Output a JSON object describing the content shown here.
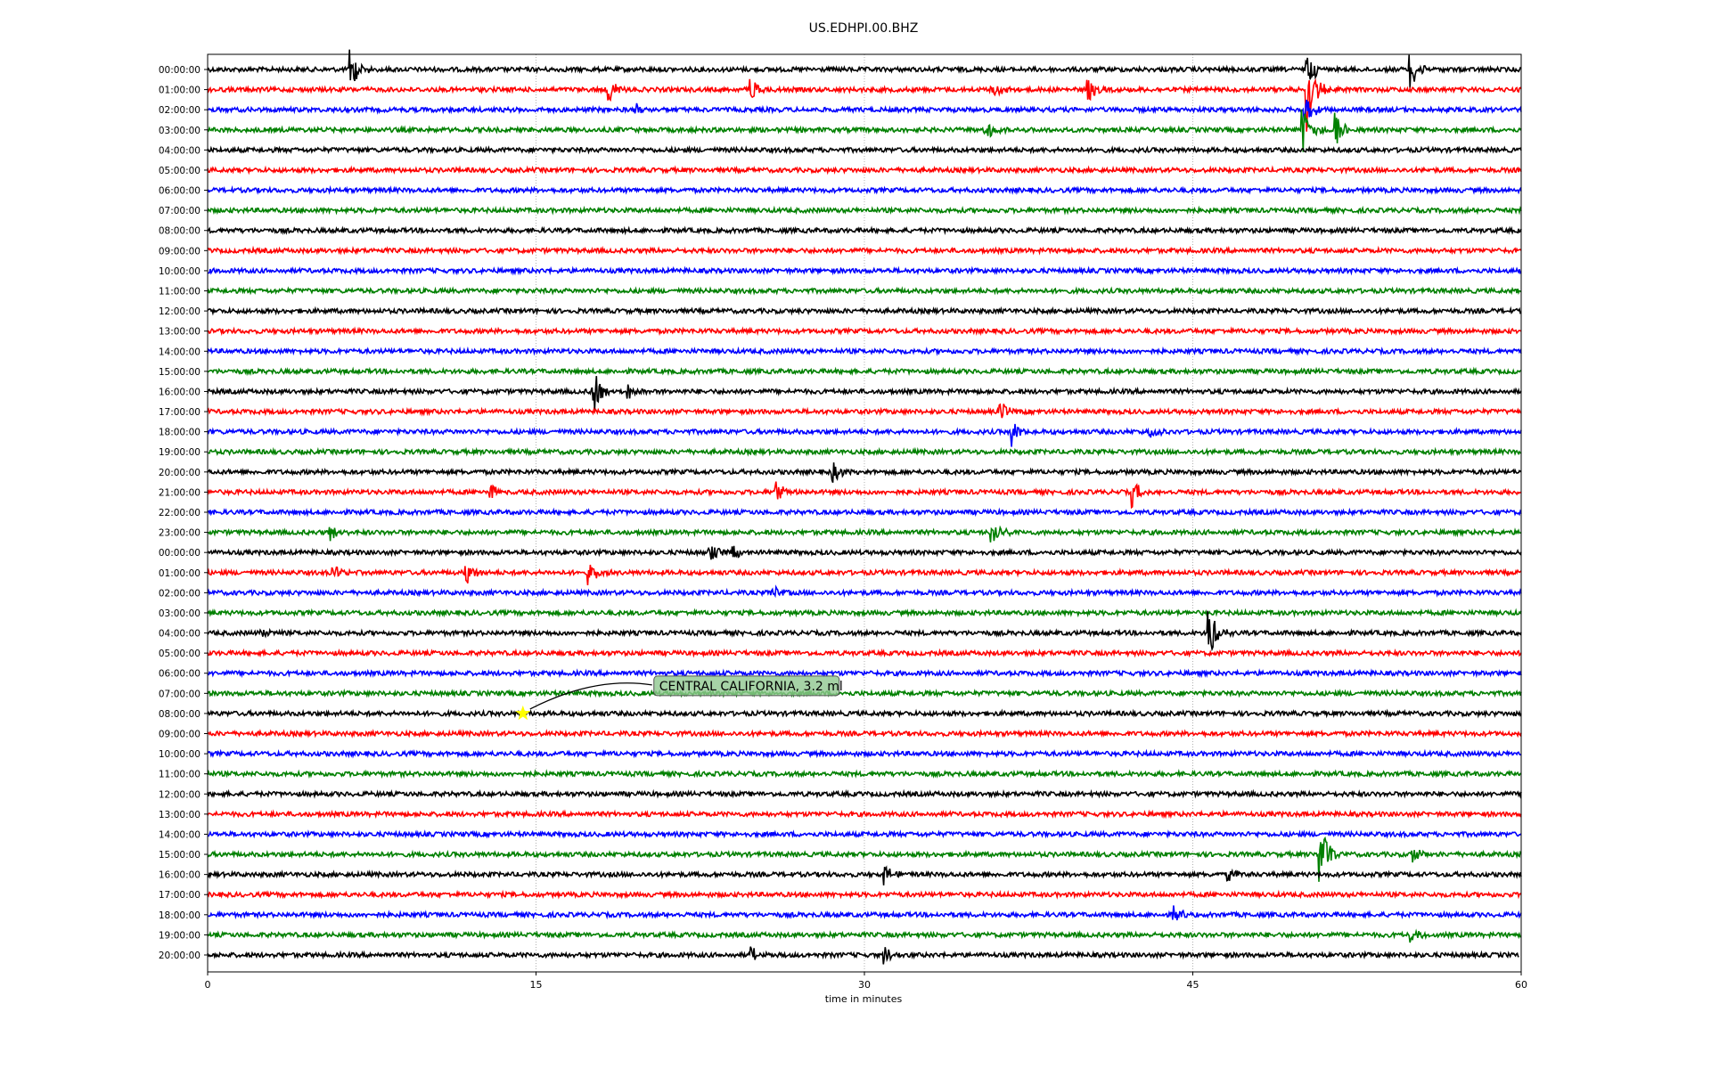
{
  "chart_data": {
    "type": "line",
    "title": "US.EDHPI.00.BHZ",
    "xlabel": "time in minutes",
    "ylabel": "",
    "xlim": [
      0,
      60
    ],
    "xticks": [
      0,
      15,
      30,
      45,
      60
    ],
    "grid": "vertical dotted at x ticks",
    "trace_labels": [
      "00:00:00",
      "01:00:00",
      "02:00:00",
      "03:00:00",
      "04:00:00",
      "05:00:00",
      "06:00:00",
      "07:00:00",
      "08:00:00",
      "09:00:00",
      "10:00:00",
      "11:00:00",
      "12:00:00",
      "13:00:00",
      "14:00:00",
      "15:00:00",
      "16:00:00",
      "17:00:00",
      "18:00:00",
      "19:00:00",
      "20:00:00",
      "21:00:00",
      "22:00:00",
      "23:00:00",
      "00:00:00",
      "01:00:00",
      "02:00:00",
      "03:00:00",
      "04:00:00",
      "05:00:00",
      "06:00:00",
      "07:00:00",
      "08:00:00",
      "09:00:00",
      "10:00:00",
      "11:00:00",
      "12:00:00",
      "13:00:00",
      "14:00:00",
      "15:00:00",
      "16:00:00",
      "17:00:00",
      "18:00:00",
      "19:00:00",
      "20:00:00"
    ],
    "color_cycle": [
      "#000000",
      "#ff0000",
      "#0000ff",
      "#008000"
    ],
    "last_trace_end_minute": 59.9,
    "events": [
      {
        "trace": 0,
        "minute": 6.5,
        "amp": 1.2
      },
      {
        "trace": 0,
        "minute": 50.2,
        "amp": 1.0
      },
      {
        "trace": 0,
        "minute": 54.9,
        "amp": 1.0
      },
      {
        "trace": 1,
        "minute": 18.3,
        "amp": 0.7
      },
      {
        "trace": 1,
        "minute": 24.8,
        "amp": 0.7
      },
      {
        "trace": 1,
        "minute": 50.2,
        "amp": 2.2
      },
      {
        "trace": 1,
        "minute": 40.2,
        "amp": 0.6
      },
      {
        "trace": 1,
        "minute": 35.8,
        "amp": 0.5
      },
      {
        "trace": 2,
        "minute": 19.5,
        "amp": 0.4
      },
      {
        "trace": 2,
        "minute": 50.1,
        "amp": 0.9
      },
      {
        "trace": 3,
        "minute": 35.5,
        "amp": 0.6
      },
      {
        "trace": 3,
        "minute": 50.0,
        "amp": 1.3
      },
      {
        "trace": 3,
        "minute": 51.5,
        "amp": 1.0
      },
      {
        "trace": 16,
        "minute": 17.6,
        "amp": 1.3
      },
      {
        "trace": 16,
        "minute": 19.2,
        "amp": 0.4
      },
      {
        "trace": 17,
        "minute": 36.2,
        "amp": 0.5
      },
      {
        "trace": 18,
        "minute": 36.7,
        "amp": 0.8
      },
      {
        "trace": 18,
        "minute": 43.0,
        "amp": 0.5
      },
      {
        "trace": 20,
        "minute": 28.5,
        "amp": 0.6
      },
      {
        "trace": 21,
        "minute": 25.9,
        "amp": 0.7
      },
      {
        "trace": 21,
        "minute": 42.2,
        "amp": 0.8
      },
      {
        "trace": 21,
        "minute": 12.9,
        "amp": 0.5
      },
      {
        "trace": 23,
        "minute": 35.8,
        "amp": 0.8
      },
      {
        "trace": 23,
        "minute": 5.6,
        "amp": 0.5
      },
      {
        "trace": 24,
        "minute": 22.9,
        "amp": 0.5
      },
      {
        "trace": 24,
        "minute": 24.0,
        "amp": 0.4
      },
      {
        "trace": 25,
        "minute": 5.7,
        "amp": 0.5
      },
      {
        "trace": 25,
        "minute": 11.8,
        "amp": 0.6
      },
      {
        "trace": 25,
        "minute": 17.4,
        "amp": 0.6
      },
      {
        "trace": 26,
        "minute": 25.7,
        "amp": 0.5
      },
      {
        "trace": 28,
        "minute": 45.7,
        "amp": 1.5
      },
      {
        "trace": 28,
        "minute": 2.4,
        "amp": 0.3
      },
      {
        "trace": 39,
        "minute": 50.8,
        "amp": 1.8
      },
      {
        "trace": 39,
        "minute": 55.0,
        "amp": 0.5
      },
      {
        "trace": 40,
        "minute": 30.9,
        "amp": 0.6
      },
      {
        "trace": 40,
        "minute": 46.6,
        "amp": 0.4
      },
      {
        "trace": 42,
        "minute": 44.1,
        "amp": 0.4
      },
      {
        "trace": 43,
        "minute": 54.9,
        "amp": 0.5
      },
      {
        "trace": 44,
        "minute": 24.8,
        "amp": 0.4
      },
      {
        "trace": 44,
        "minute": 30.9,
        "amp": 0.5
      }
    ],
    "annotation": {
      "text": "CENTRAL CALIFORNIA, 3.2 ml",
      "trace": 32,
      "minute": 14.4,
      "marker": "star",
      "marker_color": "#ffff00",
      "box_color": "#90c890"
    }
  }
}
